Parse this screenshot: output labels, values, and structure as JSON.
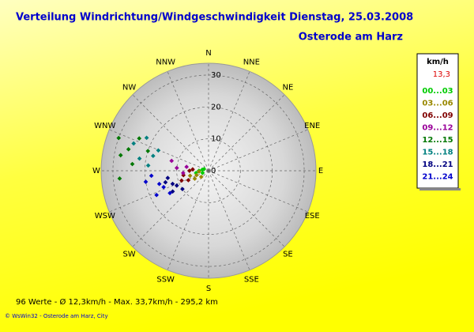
{
  "chart_data": {
    "type": "polar-scatter",
    "title": "Verteilung Windrichtung/Windgeschwindigkeit  Dienstag, 25.03.2008",
    "subtitle": "Osterode am Harz",
    "direction_labels": [
      "N",
      "NNE",
      "NE",
      "ENE",
      "E",
      "ESE",
      "SE",
      "SSE",
      "S",
      "SSW",
      "SW",
      "WSW",
      "W",
      "WNW",
      "NW",
      "NNW"
    ],
    "rlim": [
      0,
      33.7
    ],
    "rticks": [
      0,
      10,
      20,
      30
    ],
    "grid": true,
    "legend_title": "km/h",
    "legend_value": "13,3",
    "series": [
      {
        "name": "00...03",
        "color": "#00cc00",
        "directions": [
          270,
          280,
          260,
          290,
          250
        ],
        "values": [
          3,
          2,
          4,
          1.5,
          2
        ]
      },
      {
        "name": "03...06",
        "color": "#998800",
        "directions": [
          250,
          240,
          265,
          255,
          230
        ],
        "values": [
          4,
          5,
          3,
          6,
          3
        ]
      },
      {
        "name": "06...09",
        "color": "#800000",
        "directions": [
          260,
          250,
          270,
          245,
          275
        ],
        "values": [
          8,
          9,
          6,
          7,
          5
        ]
      },
      {
        "name": "09...12",
        "color": "#990099",
        "directions": [
          275,
          285,
          265,
          280
        ],
        "values": [
          10,
          12,
          8,
          7
        ]
      },
      {
        "name": "12...15",
        "color": "#007700",
        "directions": [
          290,
          285,
          280,
          275,
          265,
          295,
          288
        ],
        "values": [
          30,
          26,
          28,
          24,
          28,
          24,
          20
        ]
      },
      {
        "name": "15...18",
        "color": "#008080",
        "directions": [
          290,
          280,
          298,
          285,
          275,
          292
        ],
        "values": [
          25,
          22,
          22,
          18,
          19,
          17
        ]
      },
      {
        "name": "18...21",
        "color": "#000080",
        "directions": [
          250,
          240,
          245,
          255,
          260,
          235
        ],
        "values": [
          12,
          13,
          11,
          14,
          13,
          10
        ]
      },
      {
        "name": "21...24",
        "color": "#0000cc",
        "directions": [
          250,
          245,
          255,
          265,
          240,
          260
        ],
        "values": [
          15,
          18,
          16,
          18,
          14,
          20
        ]
      }
    ]
  },
  "footer": {
    "stats": "96 Werte   -   Ø 12,3km/h  -  Max. 33,7km/h   -   295,2 km",
    "credit": "© WsWin32  -  Osterode am Harz, City"
  }
}
